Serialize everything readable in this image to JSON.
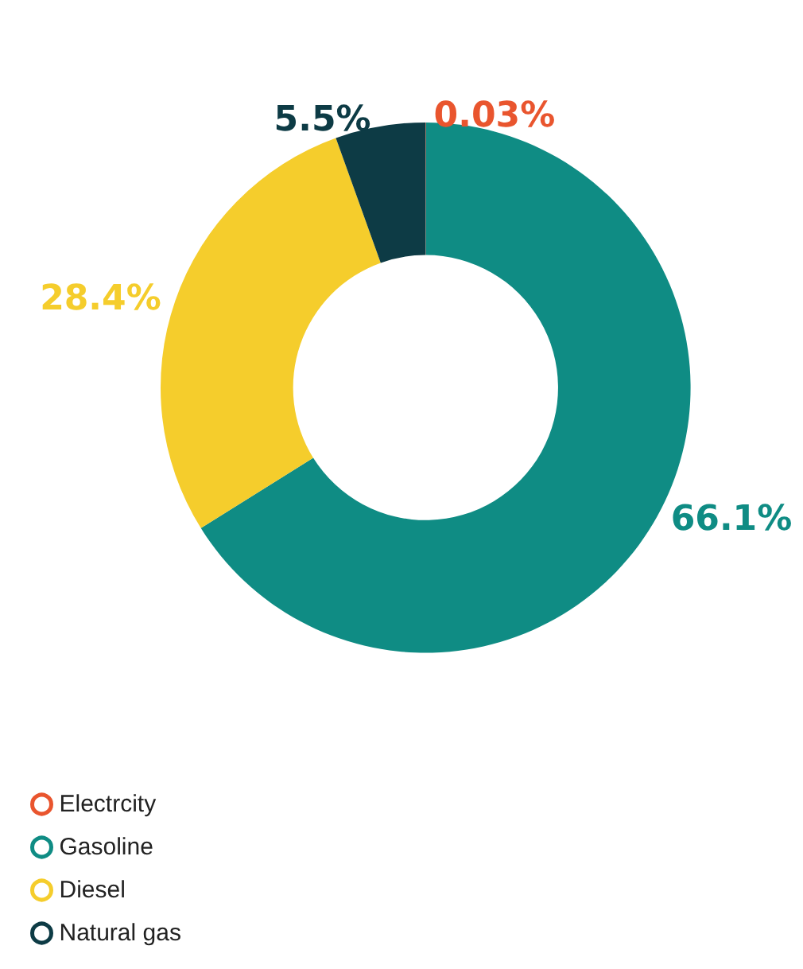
{
  "chart_data": {
    "type": "donut",
    "categories": [
      "Electrcity",
      "Gasoline",
      "Diesel",
      "Natural gas"
    ],
    "values": [
      0.03,
      66.1,
      28.4,
      5.5
    ],
    "colors": [
      "#e9552e",
      "#0f8c84",
      "#f5cd2c",
      "#0d3b45"
    ],
    "value_labels": [
      "0.03%",
      "66.1%",
      "28.4%",
      "5.5%"
    ],
    "legend": "bottom left"
  }
}
